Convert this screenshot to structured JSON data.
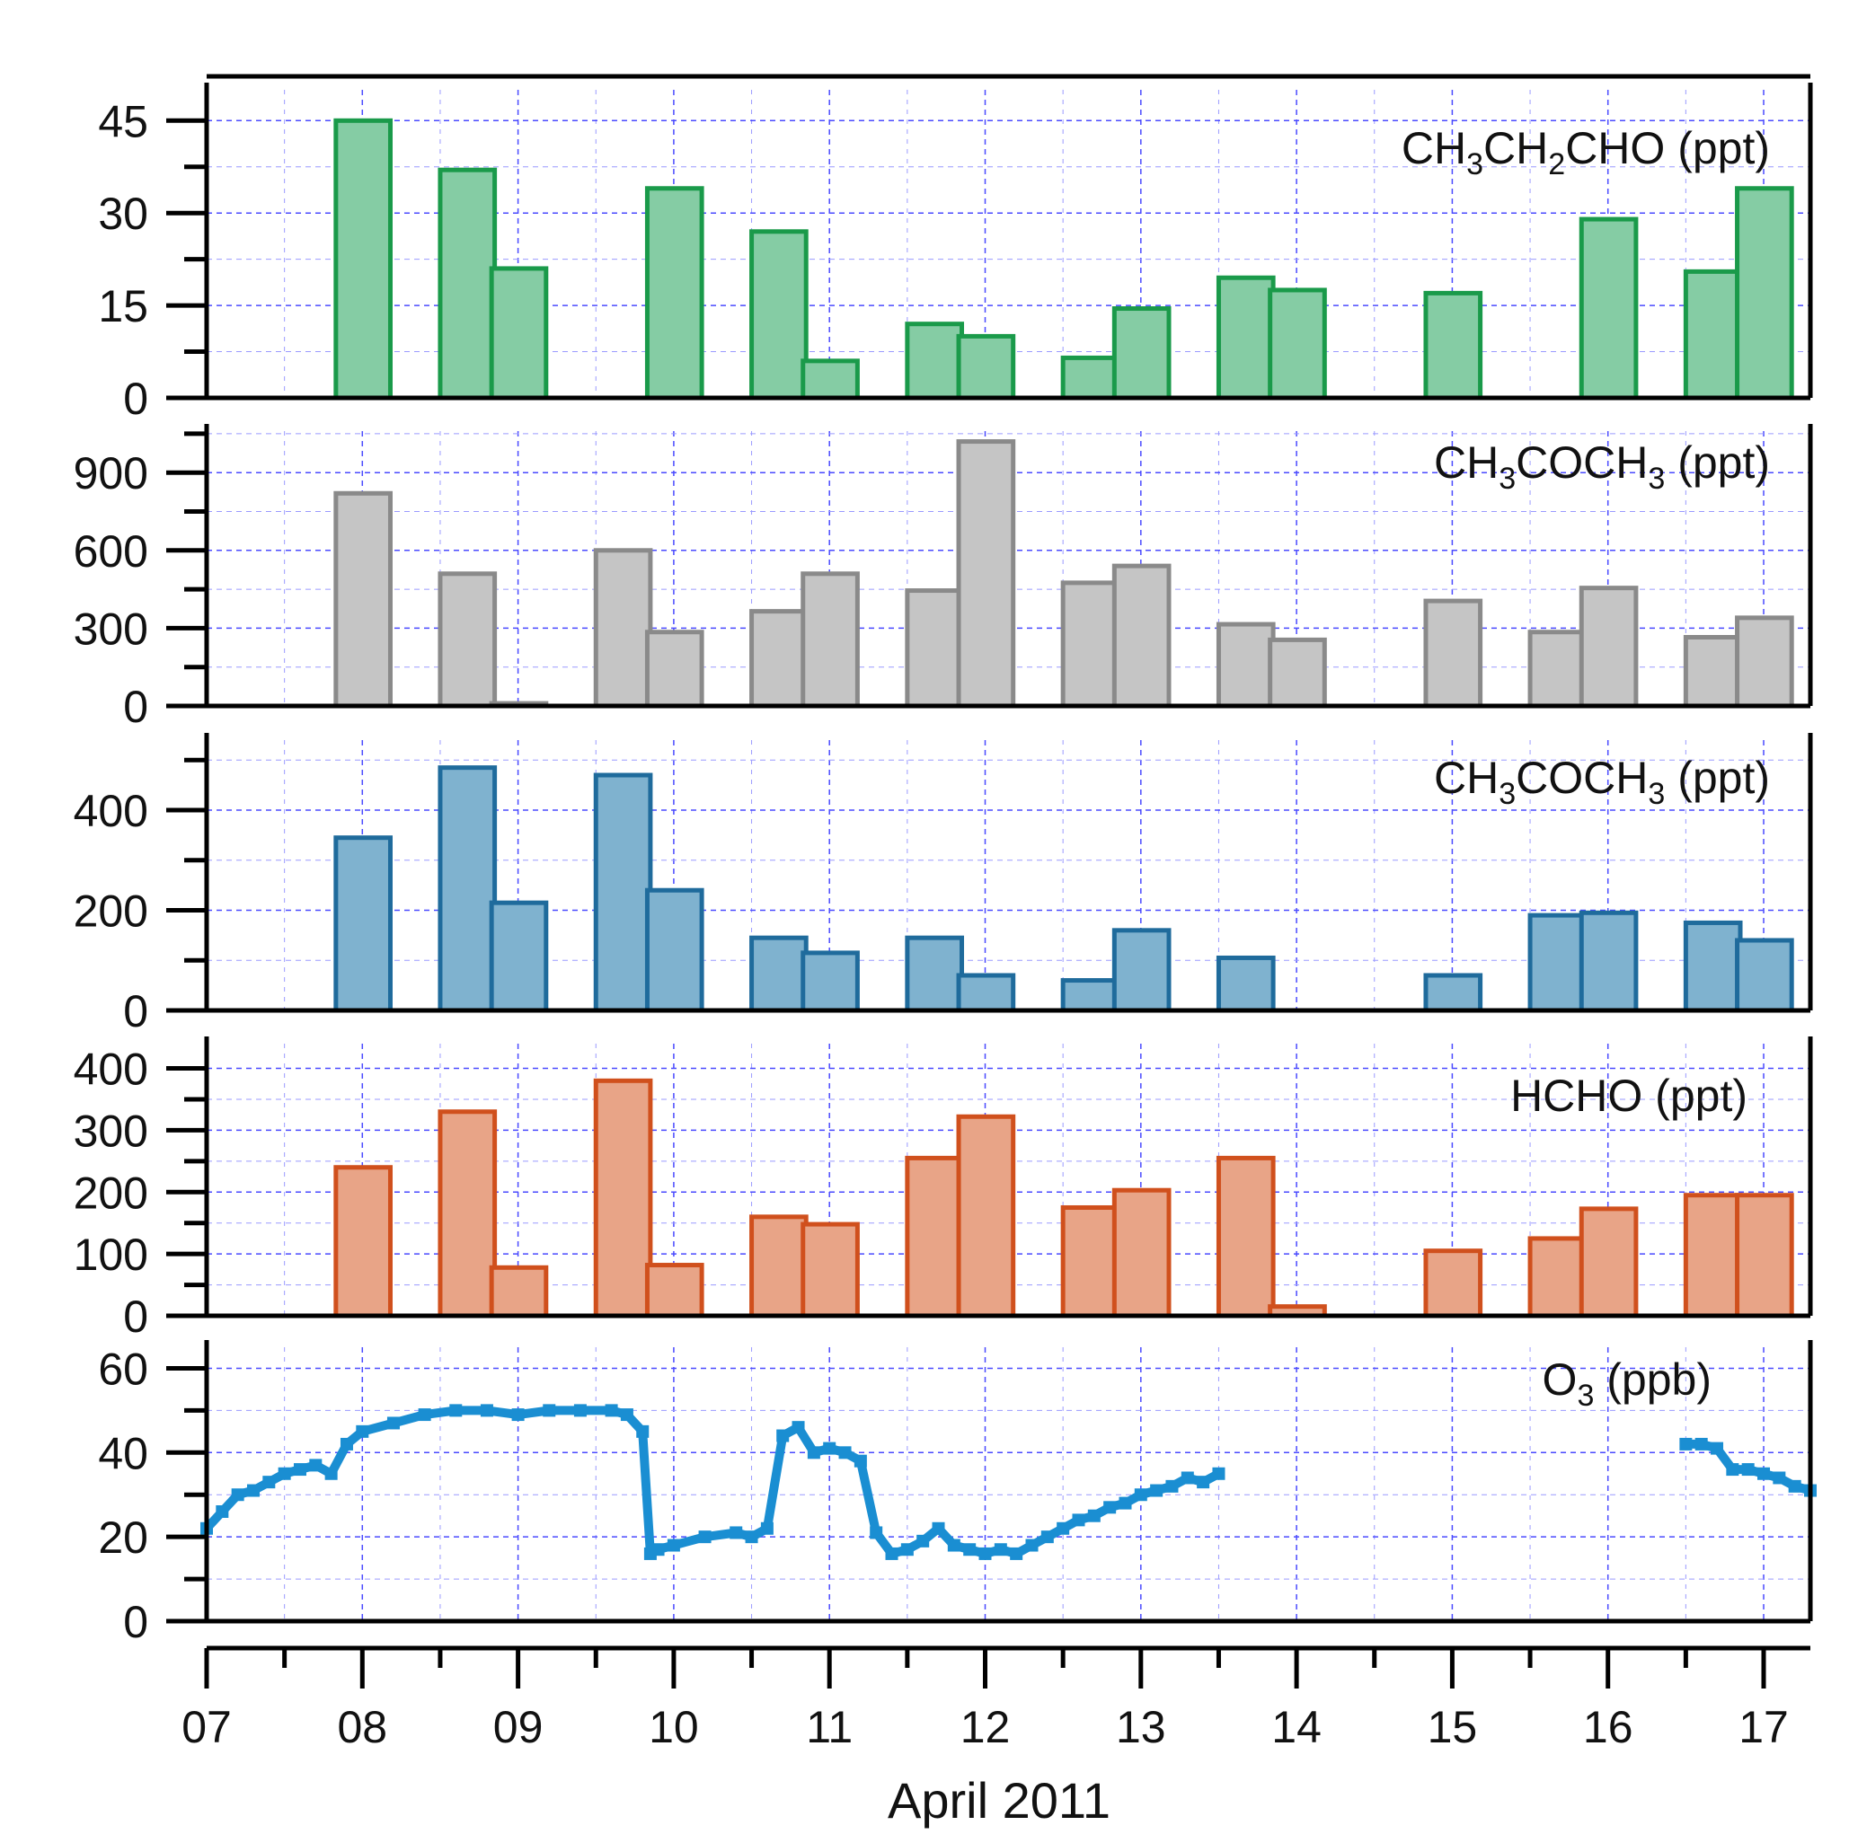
{
  "figure": {
    "x_axis_title": "April 2011"
  },
  "colors": {
    "green_fill": "#85cca4",
    "green_edge": "#1a9a4a",
    "gray_fill": "#c5c5c5",
    "gray_edge": "#8a8a8a",
    "blue_fill": "#7fb2cf",
    "blue_edge": "#1f6b9c",
    "orange_fill": "#e8a487",
    "orange_edge": "#d0501d",
    "o3": "#1a8ed2",
    "grid": "#4a4aff",
    "grid_light": "#9a9aff"
  },
  "chart_data": [
    {
      "type": "bar",
      "name": "CH3CH2CHO",
      "label_parts": [
        [
          "CH",
          ""
        ],
        [
          "3",
          "sub"
        ],
        [
          "CH",
          ""
        ],
        [
          "2",
          "sub"
        ],
        [
          "CHO (ppt)",
          ""
        ]
      ],
      "ylim": [
        0,
        50
      ],
      "yticks": [
        0,
        15,
        30,
        45
      ],
      "yticklabels": [
        "0",
        "15",
        "30",
        "45"
      ],
      "bar_width_days": 0.35,
      "x": [
        7.83,
        8.5,
        8.83,
        9.83,
        10.5,
        10.83,
        11.5,
        11.83,
        12.5,
        12.83,
        13.5,
        13.83,
        14.83,
        15.83,
        16.5,
        16.83
      ],
      "values": [
        45,
        37,
        21,
        34,
        27,
        6,
        12,
        10,
        6.5,
        14.5,
        19.5,
        17.5,
        17,
        29,
        20.5,
        34
      ],
      "fill_key": "green_fill",
      "edge_key": "green_edge"
    },
    {
      "type": "bar",
      "name": "CH3COCH3",
      "label_parts": [
        [
          "CH",
          ""
        ],
        [
          "3",
          "sub"
        ],
        [
          "COCH",
          ""
        ],
        [
          "3",
          "sub"
        ],
        [
          " (ppt)",
          ""
        ]
      ],
      "ylim": [
        0,
        1060
      ],
      "yticks": [
        0,
        300,
        600,
        900
      ],
      "yticklabels": [
        "0",
        "300",
        "600",
        "900"
      ],
      "bar_width_days": 0.35,
      "x": [
        7.83,
        8.5,
        8.83,
        9.5,
        9.83,
        10.5,
        10.83,
        11.5,
        11.83,
        12.5,
        12.83,
        13.5,
        13.83,
        14.83,
        15.5,
        15.83,
        16.5,
        16.83
      ],
      "values": [
        820,
        510,
        10,
        600,
        285,
        365,
        510,
        445,
        1020,
        475,
        540,
        315,
        255,
        405,
        285,
        455,
        265,
        340
      ],
      "fill_key": "gray_fill",
      "edge_key": "gray_edge"
    },
    {
      "type": "bar",
      "name": "CH3COCH3 (third panel)",
      "label_parts": [
        [
          "CH",
          ""
        ],
        [
          "3",
          "sub"
        ],
        [
          "COCH",
          ""
        ],
        [
          "3",
          "sub"
        ],
        [
          " (ppt)",
          ""
        ]
      ],
      "ylim": [
        0,
        540
      ],
      "yticks": [
        0,
        200,
        400
      ],
      "yticklabels": [
        "0",
        "200",
        "400"
      ],
      "bar_width_days": 0.35,
      "x": [
        7.83,
        8.5,
        8.83,
        9.5,
        9.83,
        10.5,
        10.83,
        11.5,
        11.83,
        12.5,
        12.83,
        13.5,
        14.83,
        15.5,
        15.83,
        16.5,
        16.83
      ],
      "values": [
        345,
        485,
        215,
        470,
        240,
        145,
        115,
        145,
        70,
        60,
        160,
        105,
        70,
        190,
        195,
        175,
        140
      ],
      "fill_key": "blue_fill",
      "edge_key": "blue_edge"
    },
    {
      "type": "bar",
      "name": "HCHO",
      "label_parts": [
        [
          "HCHO (ppt)",
          ""
        ]
      ],
      "ylim": [
        0,
        440
      ],
      "yticks": [
        0,
        100,
        200,
        300,
        400
      ],
      "yticklabels": [
        "0",
        "100",
        "200",
        "300",
        "400"
      ],
      "bar_width_days": 0.35,
      "x": [
        7.83,
        8.5,
        8.83,
        9.5,
        9.83,
        10.5,
        10.83,
        11.5,
        11.83,
        12.5,
        12.83,
        13.5,
        13.83,
        14.83,
        15.5,
        15.83,
        16.5,
        16.83
      ],
      "values": [
        240,
        330,
        78,
        380,
        82,
        160,
        148,
        255,
        322,
        175,
        203,
        255,
        15,
        105,
        125,
        173,
        195,
        195
      ],
      "fill_key": "orange_fill",
      "edge_key": "orange_edge"
    },
    {
      "type": "scatter",
      "name": "O3",
      "label_parts": [
        [
          "O",
          ""
        ],
        [
          "3",
          "sub"
        ],
        [
          " (ppb)",
          ""
        ]
      ],
      "ylim": [
        0,
        65
      ],
      "yticks": [
        0,
        20,
        40,
        60
      ],
      "yticklabels": [
        "0",
        "20",
        "40",
        "60"
      ],
      "x": [
        7.0,
        7.1,
        7.2,
        7.3,
        7.4,
        7.5,
        7.6,
        7.7,
        7.8,
        7.9,
        8.0,
        8.2,
        8.4,
        8.6,
        8.8,
        9.0,
        9.2,
        9.4,
        9.6,
        9.7,
        9.8,
        9.85,
        9.9,
        10.0,
        10.2,
        10.4,
        10.5,
        10.6,
        10.7,
        10.8,
        10.9,
        11.0,
        11.1,
        11.2,
        11.3,
        11.4,
        11.5,
        11.6,
        11.7,
        11.8,
        11.9,
        12.0,
        12.1,
        12.2,
        12.3,
        12.4,
        12.5,
        12.6,
        12.7,
        12.8,
        12.9,
        13.0,
        13.1,
        13.2,
        13.3,
        13.4,
        13.5,
        16.5,
        16.6,
        16.7,
        16.8,
        16.9,
        17.0,
        17.1,
        17.2,
        17.3
      ],
      "values": [
        22,
        26,
        30,
        31,
        33,
        35,
        36,
        37,
        35,
        42,
        45,
        47,
        49,
        50,
        50,
        49,
        50,
        50,
        50,
        49,
        45,
        16,
        17,
        18,
        20,
        21,
        20,
        22,
        44,
        46,
        40,
        41,
        40,
        38,
        21,
        16,
        17,
        19,
        22,
        18,
        17,
        16,
        17,
        16,
        18,
        20,
        22,
        24,
        25,
        27,
        28,
        30,
        31,
        32,
        34,
        33,
        35,
        42,
        42,
        41,
        36,
        36,
        35,
        34,
        32,
        31
      ],
      "color_key": "o3"
    }
  ],
  "x_axis": {
    "range": [
      7,
      17.3
    ],
    "ticks": [
      7,
      8,
      9,
      10,
      11,
      12,
      13,
      14,
      15,
      16,
      17
    ],
    "ticklabels": [
      "07",
      "08",
      "09",
      "10",
      "11",
      "12",
      "13",
      "14",
      "15",
      "16",
      "17"
    ]
  }
}
